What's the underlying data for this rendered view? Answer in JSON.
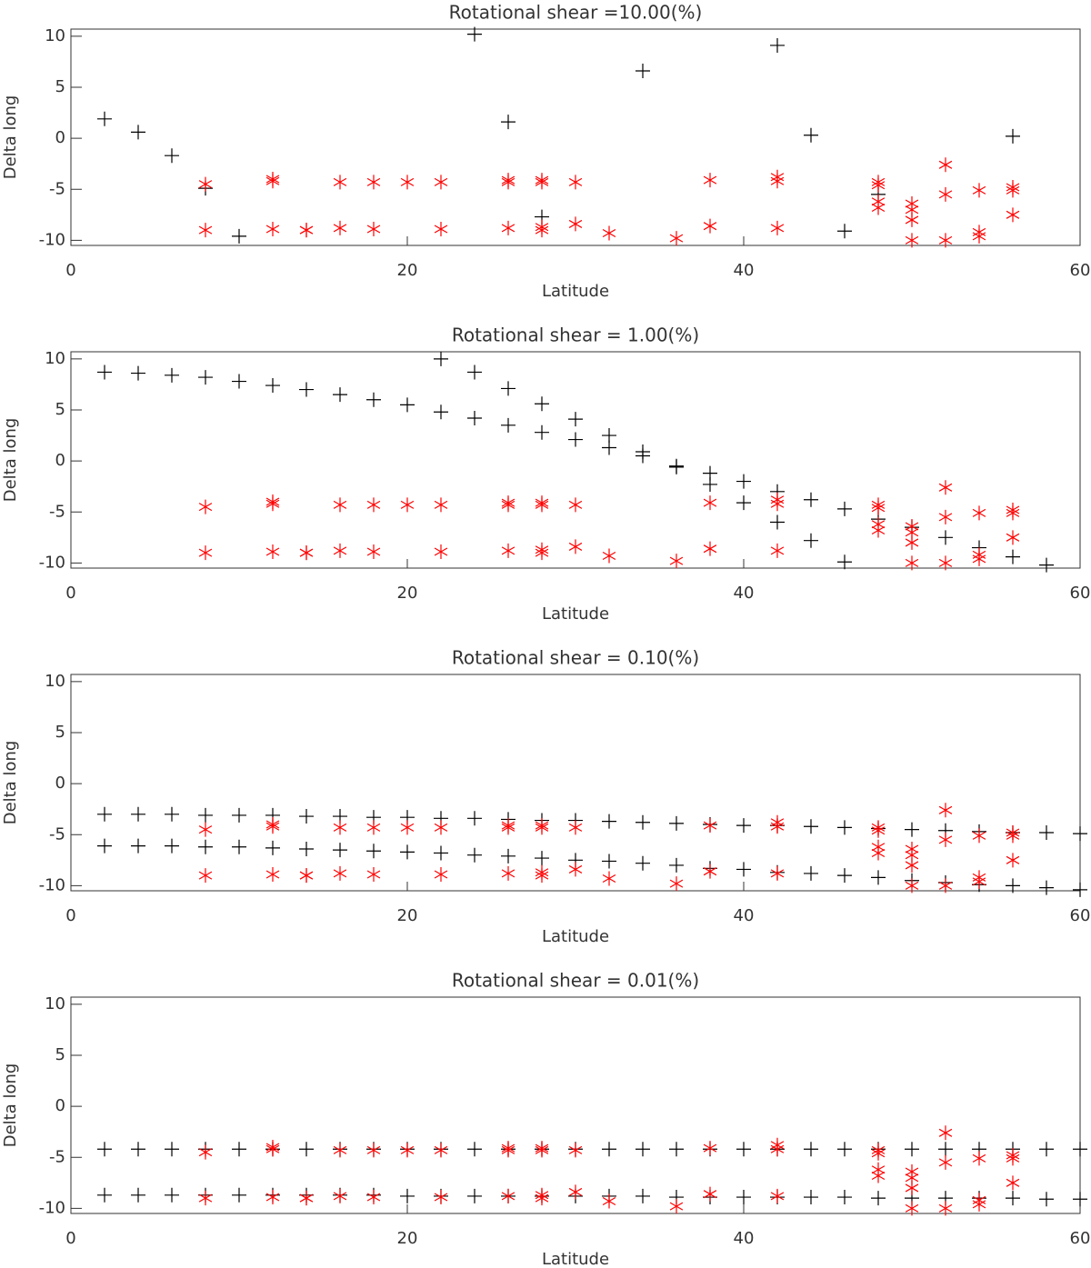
{
  "chart_data": [
    {
      "type": "scatter",
      "title": "Rotational shear =10.00(%)",
      "xlabel": "Latitude",
      "ylabel": "Delta long",
      "xlim": [
        0,
        60
      ],
      "ylim": [
        -10.5,
        10.7
      ],
      "xticks": [
        0,
        20,
        40,
        60
      ],
      "yticks": [
        -10,
        -5,
        0,
        5,
        10
      ],
      "series": [
        {
          "color": "#000000",
          "marker": "plus",
          "x": [
            2,
            4,
            6,
            8,
            10,
            24,
            26,
            28,
            34,
            42,
            44,
            46,
            48,
            56
          ],
          "y": [
            1.9,
            0.6,
            -1.7,
            -4.9,
            -9.6,
            10.2,
            1.6,
            -7.7,
            6.6,
            9.1,
            0.3,
            -9.1,
            -5.5,
            0.2
          ]
        },
        {
          "color": "#ff0000",
          "marker": "asterisk",
          "x": [
            8,
            8,
            12,
            12,
            12,
            14,
            14,
            16,
            16,
            18,
            18,
            20,
            22,
            22,
            26,
            26,
            26,
            28,
            28,
            28,
            28,
            30,
            30,
            32,
            36,
            38,
            38,
            42,
            42,
            42,
            48,
            48,
            48,
            48,
            50,
            50,
            50,
            50,
            52,
            52,
            52,
            54,
            54,
            54,
            56,
            56,
            56
          ],
          "y": [
            -4.5,
            -9,
            -4.0,
            -4.2,
            -8.9,
            -9.0,
            -9.0,
            -4.3,
            -8.8,
            -4.3,
            -8.9,
            -4.3,
            -4.3,
            -8.9,
            -4.1,
            -4.3,
            -8.8,
            -4.1,
            -4.3,
            -8.7,
            -9.0,
            -4.3,
            -8.4,
            -9.3,
            -9.8,
            -4.1,
            -8.6,
            -3.8,
            -4.2,
            -8.8,
            -4.3,
            -4.6,
            -6.2,
            -6.8,
            -6.4,
            -7.0,
            -8.0,
            -10.0,
            -2.6,
            -5.5,
            -10.0,
            -5.1,
            -9.2,
            -9.6,
            -4.8,
            -5.1,
            -7.5
          ]
        }
      ]
    },
    {
      "type": "scatter",
      "title": "Rotational shear = 1.00(%)",
      "xlabel": "Latitude",
      "ylabel": "Delta long",
      "xlim": [
        0,
        60
      ],
      "ylim": [
        -10.5,
        10.7
      ],
      "xticks": [
        0,
        20,
        40,
        60
      ],
      "yticks": [
        -10,
        -5,
        0,
        5,
        10
      ],
      "series": [
        {
          "color": "#000000",
          "marker": "plus",
          "x": [
            2,
            4,
            6,
            8,
            10,
            12,
            14,
            16,
            18,
            20,
            22,
            24,
            26,
            28,
            30,
            32,
            34,
            36,
            38,
            40,
            42,
            44,
            46,
            22,
            24,
            26,
            28,
            30,
            32,
            34,
            36,
            38,
            40,
            42,
            44,
            46,
            48,
            50,
            52,
            54,
            56,
            58
          ],
          "y": [
            8.7,
            8.6,
            8.4,
            8.2,
            7.8,
            7.4,
            7.0,
            6.5,
            6.0,
            5.5,
            4.8,
            4.2,
            3.5,
            2.8,
            2.1,
            1.3,
            0.5,
            -0.5,
            -2.3,
            -4.1,
            -6.0,
            -7.8,
            -9.9,
            10.0,
            8.7,
            7.1,
            5.6,
            4.1,
            2.5,
            0.9,
            -0.6,
            -1.2,
            -2.0,
            -3.0,
            -3.8,
            -4.7,
            -5.7,
            -6.5,
            -7.5,
            -8.5,
            -9.4,
            -10.2
          ]
        },
        {
          "color": "#ff0000",
          "marker": "asterisk",
          "x": [
            8,
            8,
            12,
            12,
            12,
            14,
            14,
            16,
            16,
            18,
            18,
            20,
            22,
            22,
            26,
            26,
            26,
            28,
            28,
            28,
            28,
            30,
            30,
            32,
            36,
            38,
            38,
            42,
            42,
            42,
            48,
            48,
            48,
            48,
            50,
            50,
            50,
            50,
            52,
            52,
            52,
            54,
            54,
            54,
            56,
            56,
            56
          ],
          "y": [
            -4.5,
            -9,
            -4.0,
            -4.2,
            -8.9,
            -9.0,
            -9.0,
            -4.3,
            -8.8,
            -4.3,
            -8.9,
            -4.3,
            -4.3,
            -8.9,
            -4.1,
            -4.3,
            -8.8,
            -4.1,
            -4.3,
            -8.7,
            -9.0,
            -4.3,
            -8.4,
            -9.3,
            -9.8,
            -4.1,
            -8.6,
            -3.8,
            -4.2,
            -8.8,
            -4.3,
            -4.6,
            -6.2,
            -6.8,
            -6.4,
            -7.0,
            -8.0,
            -10.0,
            -2.6,
            -5.5,
            -10.0,
            -5.1,
            -9.2,
            -9.6,
            -4.8,
            -5.1,
            -7.5
          ]
        }
      ]
    },
    {
      "type": "scatter",
      "title": "Rotational shear = 0.10(%)",
      "xlabel": "Latitude",
      "ylabel": "Delta long",
      "xlim": [
        0,
        60
      ],
      "ylim": [
        -10.5,
        10.7
      ],
      "xticks": [
        0,
        20,
        40,
        60
      ],
      "yticks": [
        -10,
        -5,
        0,
        5,
        10
      ],
      "series": [
        {
          "color": "#000000",
          "marker": "plus",
          "x": [
            2,
            4,
            6,
            8,
            10,
            12,
            14,
            16,
            18,
            20,
            22,
            24,
            26,
            28,
            30,
            32,
            34,
            36,
            38,
            40,
            42,
            44,
            46,
            48,
            50,
            52,
            54,
            56,
            58,
            60,
            2,
            4,
            6,
            8,
            10,
            12,
            14,
            16,
            18,
            20,
            22,
            24,
            26,
            28,
            30,
            32,
            34,
            36,
            38,
            40,
            42,
            44,
            46,
            48,
            50,
            52,
            54,
            56,
            58,
            60
          ],
          "y": [
            -3.0,
            -3.0,
            -3.0,
            -3.1,
            -3.1,
            -3.1,
            -3.2,
            -3.2,
            -3.3,
            -3.3,
            -3.4,
            -3.4,
            -3.5,
            -3.6,
            -3.6,
            -3.7,
            -3.8,
            -3.9,
            -4.0,
            -4.1,
            -4.1,
            -4.2,
            -4.3,
            -4.4,
            -4.5,
            -4.6,
            -4.7,
            -4.8,
            -4.8,
            -4.9,
            -6.1,
            -6.1,
            -6.1,
            -6.2,
            -6.2,
            -6.3,
            -6.4,
            -6.5,
            -6.6,
            -6.7,
            -6.8,
            -7.0,
            -7.1,
            -7.3,
            -7.5,
            -7.6,
            -7.8,
            -8.0,
            -8.3,
            -8.4,
            -8.7,
            -8.8,
            -9.0,
            -9.2,
            -9.5,
            -9.7,
            -9.9,
            -10.0,
            -10.2,
            -10.4
          ]
        },
        {
          "color": "#ff0000",
          "marker": "asterisk",
          "x": [
            8,
            8,
            12,
            12,
            12,
            14,
            14,
            16,
            16,
            18,
            18,
            20,
            22,
            22,
            26,
            26,
            26,
            28,
            28,
            28,
            28,
            30,
            30,
            32,
            36,
            38,
            38,
            42,
            42,
            42,
            48,
            48,
            48,
            48,
            50,
            50,
            50,
            50,
            52,
            52,
            52,
            54,
            54,
            54,
            56,
            56,
            56
          ],
          "y": [
            -4.5,
            -9,
            -4.0,
            -4.2,
            -8.9,
            -9.0,
            -9.0,
            -4.3,
            -8.8,
            -4.3,
            -8.9,
            -4.3,
            -4.3,
            -8.9,
            -4.1,
            -4.3,
            -8.8,
            -4.1,
            -4.3,
            -8.7,
            -9.0,
            -4.3,
            -8.4,
            -9.3,
            -9.8,
            -4.1,
            -8.6,
            -3.8,
            -4.2,
            -8.8,
            -4.3,
            -4.6,
            -6.2,
            -6.8,
            -6.4,
            -7.0,
            -8.0,
            -10.0,
            -2.6,
            -5.5,
            -10.0,
            -5.1,
            -9.2,
            -9.6,
            -4.8,
            -5.1,
            -7.5
          ]
        }
      ]
    },
    {
      "type": "scatter",
      "title": "Rotational shear = 0.01(%)",
      "xlabel": "Latitude",
      "ylabel": "Delta long",
      "xlim": [
        0,
        60
      ],
      "ylim": [
        -10.5,
        10.7
      ],
      "xticks": [
        0,
        20,
        40,
        60
      ],
      "yticks": [
        -10,
        -5,
        0,
        5,
        10
      ],
      "series": [
        {
          "color": "#000000",
          "marker": "plus",
          "x": [
            2,
            4,
            6,
            8,
            10,
            12,
            14,
            16,
            18,
            20,
            22,
            24,
            26,
            28,
            30,
            32,
            34,
            36,
            38,
            40,
            42,
            44,
            46,
            48,
            50,
            52,
            54,
            56,
            58,
            60,
            2,
            4,
            6,
            8,
            10,
            12,
            14,
            16,
            18,
            20,
            22,
            24,
            26,
            28,
            30,
            32,
            34,
            36,
            38,
            40,
            42,
            44,
            46,
            48,
            50,
            52,
            54,
            56,
            58,
            60
          ],
          "y": [
            -4.2,
            -4.2,
            -4.2,
            -4.2,
            -4.2,
            -4.2,
            -4.2,
            -4.2,
            -4.2,
            -4.2,
            -4.2,
            -4.2,
            -4.2,
            -4.2,
            -4.2,
            -4.2,
            -4.2,
            -4.2,
            -4.2,
            -4.2,
            -4.2,
            -4.2,
            -4.2,
            -4.2,
            -4.2,
            -4.2,
            -4.2,
            -4.2,
            -4.2,
            -4.2,
            -8.7,
            -8.7,
            -8.7,
            -8.7,
            -8.7,
            -8.7,
            -8.7,
            -8.7,
            -8.7,
            -8.8,
            -8.8,
            -8.8,
            -8.8,
            -8.8,
            -8.8,
            -8.8,
            -8.8,
            -8.9,
            -8.9,
            -8.9,
            -8.9,
            -8.9,
            -8.9,
            -9.0,
            -9.0,
            -9.0,
            -9.0,
            -9.0,
            -9.1,
            -9.1
          ]
        },
        {
          "color": "#ff0000",
          "marker": "asterisk",
          "x": [
            8,
            8,
            12,
            12,
            12,
            14,
            14,
            16,
            16,
            18,
            18,
            20,
            22,
            22,
            26,
            26,
            26,
            28,
            28,
            28,
            28,
            30,
            30,
            32,
            36,
            38,
            38,
            42,
            42,
            42,
            48,
            48,
            48,
            48,
            50,
            50,
            50,
            50,
            52,
            52,
            52,
            54,
            54,
            54,
            56,
            56,
            56
          ],
          "y": [
            -4.5,
            -9,
            -4.0,
            -4.2,
            -8.9,
            -9.0,
            -9.0,
            -4.3,
            -8.8,
            -4.3,
            -8.9,
            -4.3,
            -4.3,
            -8.9,
            -4.1,
            -4.3,
            -8.8,
            -4.1,
            -4.3,
            -8.7,
            -9.0,
            -4.3,
            -8.4,
            -9.3,
            -9.8,
            -4.1,
            -8.6,
            -3.8,
            -4.2,
            -8.8,
            -4.3,
            -4.6,
            -6.2,
            -6.8,
            -6.4,
            -7.0,
            -8.0,
            -10.0,
            -2.6,
            -5.5,
            -10.0,
            -5.1,
            -9.2,
            -9.6,
            -4.8,
            -5.1,
            -7.5
          ]
        }
      ]
    }
  ]
}
